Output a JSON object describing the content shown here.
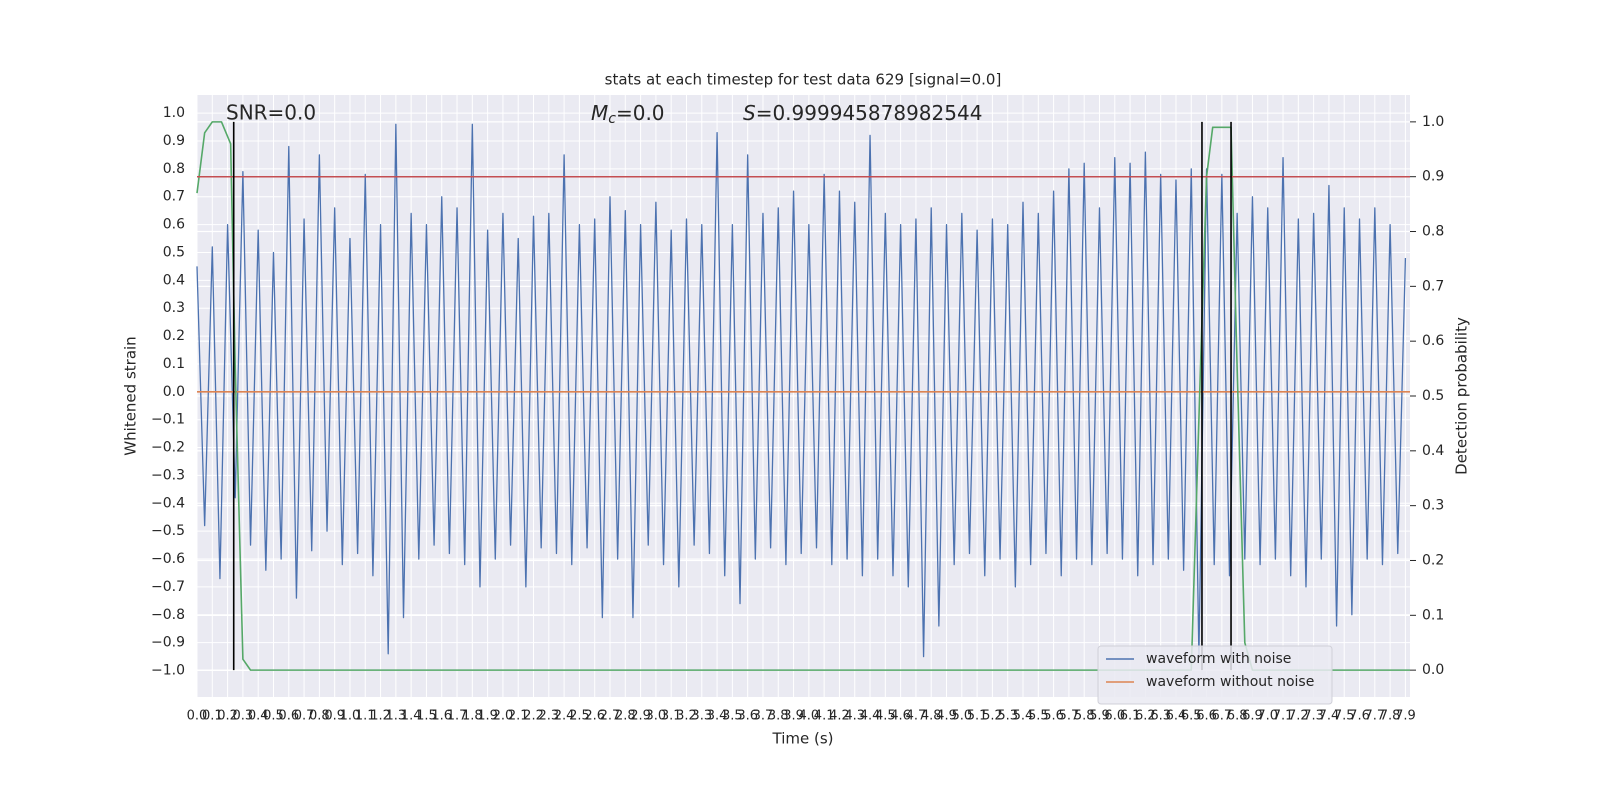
{
  "chart_data": {
    "type": "line",
    "title": "stats at each timestep for test data 629 [signal=0.0]",
    "xlabel": "Time (s)",
    "ylabel": "Whitened strain",
    "y2label": "Detection probability",
    "xlim": [
      0,
      7.93
    ],
    "ylim": [
      -1.095,
      1.065
    ],
    "y2lim": [
      -0.049,
      1.049
    ],
    "grid": true,
    "legend": "lower right",
    "xticks": [
      {
        "value": 0,
        "label": "0.0"
      },
      {
        "value": 0.1,
        "label": "0.1"
      },
      {
        "value": 0.2,
        "label": "0.2"
      },
      {
        "value": 0.3,
        "label": "0.3"
      },
      {
        "value": 0.4,
        "label": "0.4"
      },
      {
        "value": 0.5,
        "label": "0.5"
      },
      {
        "value": 0.6,
        "label": "0.6"
      },
      {
        "value": 0.7,
        "label": "0.7"
      },
      {
        "value": 0.8,
        "label": "0.8"
      },
      {
        "value": 0.9,
        "label": "0.9"
      },
      {
        "value": 1,
        "label": "1.0"
      },
      {
        "value": 1.1,
        "label": "1.1"
      },
      {
        "value": 1.2,
        "label": "1.2"
      },
      {
        "value": 1.3,
        "label": "1.3"
      },
      {
        "value": 1.4,
        "label": "1.4"
      },
      {
        "value": 1.5,
        "label": "1.5"
      },
      {
        "value": 1.6,
        "label": "1.6"
      },
      {
        "value": 1.7,
        "label": "1.7"
      },
      {
        "value": 1.8,
        "label": "1.8"
      },
      {
        "value": 1.9,
        "label": "1.9"
      },
      {
        "value": 2,
        "label": "2.0"
      },
      {
        "value": 2.1,
        "label": "2.1"
      },
      {
        "value": 2.2,
        "label": "2.2"
      },
      {
        "value": 2.3,
        "label": "2.3"
      },
      {
        "value": 2.4,
        "label": "2.4"
      },
      {
        "value": 2.5,
        "label": "2.5"
      },
      {
        "value": 2.6,
        "label": "2.6"
      },
      {
        "value": 2.7,
        "label": "2.7"
      },
      {
        "value": 2.8,
        "label": "2.8"
      },
      {
        "value": 2.9,
        "label": "2.9"
      },
      {
        "value": 3,
        "label": "3.0"
      },
      {
        "value": 3.1,
        "label": "3.1"
      },
      {
        "value": 3.2,
        "label": "3.2"
      },
      {
        "value": 3.3,
        "label": "3.3"
      },
      {
        "value": 3.4,
        "label": "3.4"
      },
      {
        "value": 3.5,
        "label": "3.5"
      },
      {
        "value": 3.6,
        "label": "3.6"
      },
      {
        "value": 3.7,
        "label": "3.7"
      },
      {
        "value": 3.8,
        "label": "3.8"
      },
      {
        "value": 3.9,
        "label": "3.9"
      },
      {
        "value": 4,
        "label": "4.0"
      },
      {
        "value": 4.1,
        "label": "4.1"
      },
      {
        "value": 4.2,
        "label": "4.2"
      },
      {
        "value": 4.3,
        "label": "4.3"
      },
      {
        "value": 4.4,
        "label": "4.4"
      },
      {
        "value": 4.5,
        "label": "4.5"
      },
      {
        "value": 4.6,
        "label": "4.6"
      },
      {
        "value": 4.7,
        "label": "4.7"
      },
      {
        "value": 4.8,
        "label": "4.8"
      },
      {
        "value": 4.9,
        "label": "4.9"
      },
      {
        "value": 5,
        "label": "5.0"
      },
      {
        "value": 5.1,
        "label": "5.1"
      },
      {
        "value": 5.2,
        "label": "5.2"
      },
      {
        "value": 5.3,
        "label": "5.3"
      },
      {
        "value": 5.4,
        "label": "5.4"
      },
      {
        "value": 5.5,
        "label": "5.5"
      },
      {
        "value": 5.6,
        "label": "5.6"
      },
      {
        "value": 5.7,
        "label": "5.7"
      },
      {
        "value": 5.8,
        "label": "5.8"
      },
      {
        "value": 5.9,
        "label": "5.9"
      },
      {
        "value": 6,
        "label": "6.0"
      },
      {
        "value": 6.1,
        "label": "6.1"
      },
      {
        "value": 6.2,
        "label": "6.2"
      },
      {
        "value": 6.3,
        "label": "6.3"
      },
      {
        "value": 6.4,
        "label": "6.4"
      },
      {
        "value": 6.5,
        "label": "6.5"
      },
      {
        "value": 6.6,
        "label": "6.6"
      },
      {
        "value": 6.7,
        "label": "6.7"
      },
      {
        "value": 6.8,
        "label": "6.8"
      },
      {
        "value": 6.9,
        "label": "6.9"
      },
      {
        "value": 7,
        "label": "7.0"
      },
      {
        "value": 7.1,
        "label": "7.1"
      },
      {
        "value": 7.2,
        "label": "7.2"
      },
      {
        "value": 7.3,
        "label": "7.3"
      },
      {
        "value": 7.4,
        "label": "7.4"
      },
      {
        "value": 7.5,
        "label": "7.5"
      },
      {
        "value": 7.6,
        "label": "7.6"
      },
      {
        "value": 7.7,
        "label": "7.7"
      },
      {
        "value": 7.8,
        "label": "7.8"
      },
      {
        "value": 7.9,
        "label": "7.9"
      }
    ],
    "yticks": [
      {
        "value": -1,
        "label": "−1.0"
      },
      {
        "value": -0.9,
        "label": "−0.9"
      },
      {
        "value": -0.8,
        "label": "−0.8"
      },
      {
        "value": -0.7,
        "label": "−0.7"
      },
      {
        "value": -0.6,
        "label": "−0.6"
      },
      {
        "value": -0.5,
        "label": "−0.5"
      },
      {
        "value": -0.4,
        "label": "−0.4"
      },
      {
        "value": -0.3,
        "label": "−0.3"
      },
      {
        "value": -0.2,
        "label": "−0.2"
      },
      {
        "value": -0.1,
        "label": "−0.1"
      },
      {
        "value": 0,
        "label": "0.0"
      },
      {
        "value": 0.1,
        "label": "0.1"
      },
      {
        "value": 0.2,
        "label": "0.2"
      },
      {
        "value": 0.3,
        "label": "0.3"
      },
      {
        "value": 0.4,
        "label": "0.4"
      },
      {
        "value": 0.5,
        "label": "0.5"
      },
      {
        "value": 0.6,
        "label": "0.6"
      },
      {
        "value": 0.7,
        "label": "0.7"
      },
      {
        "value": 0.8,
        "label": "0.8"
      },
      {
        "value": 0.9,
        "label": "0.9"
      },
      {
        "value": 1,
        "label": "1.0"
      }
    ],
    "y2ticks": [
      {
        "value": 0,
        "label": "0.0"
      },
      {
        "value": 0.1,
        "label": "0.1"
      },
      {
        "value": 0.2,
        "label": "0.2"
      },
      {
        "value": 0.3,
        "label": "0.3"
      },
      {
        "value": 0.4,
        "label": "0.4"
      },
      {
        "value": 0.5,
        "label": "0.5"
      },
      {
        "value": 0.6,
        "label": "0.6"
      },
      {
        "value": 0.7,
        "label": "0.7"
      },
      {
        "value": 0.8,
        "label": "0.8"
      },
      {
        "value": 0.9,
        "label": "0.9"
      },
      {
        "value": 1,
        "label": "1.0"
      }
    ],
    "series": [
      {
        "name": "waveform with noise",
        "color": "#4c72b0",
        "x": [
          0,
          0.05,
          0.1,
          0.15,
          0.2,
          0.25,
          0.3,
          0.35,
          0.4,
          0.45,
          0.5,
          0.55,
          0.6,
          0.65,
          0.7,
          0.75,
          0.8,
          0.85,
          0.9,
          0.95,
          1,
          1.05,
          1.1,
          1.15,
          1.2,
          1.25,
          1.3,
          1.35,
          1.4,
          1.45,
          1.5,
          1.55,
          1.6,
          1.65,
          1.7,
          1.75,
          1.8,
          1.85,
          1.9,
          1.95,
          2,
          2.05,
          2.1,
          2.15,
          2.2,
          2.25,
          2.3,
          2.35,
          2.4,
          2.45,
          2.5,
          2.55,
          2.6,
          2.65,
          2.7,
          2.75,
          2.8,
          2.85,
          2.9,
          2.95,
          3,
          3.05,
          3.1,
          3.15,
          3.2,
          3.25,
          3.3,
          3.35,
          3.4,
          3.45,
          3.5,
          3.55,
          3.6,
          3.65,
          3.7,
          3.75,
          3.8,
          3.85,
          3.9,
          3.95,
          4,
          4.05,
          4.1,
          4.15,
          4.2,
          4.25,
          4.3,
          4.35,
          4.4,
          4.45,
          4.5,
          4.55,
          4.6,
          4.65,
          4.7,
          4.75,
          4.8,
          4.85,
          4.9,
          4.95,
          5,
          5.05,
          5.1,
          5.15,
          5.2,
          5.25,
          5.3,
          5.35,
          5.4,
          5.45,
          5.5,
          5.55,
          5.6,
          5.65,
          5.7,
          5.75,
          5.8,
          5.85,
          5.9,
          5.95,
          6,
          6.05,
          6.1,
          6.15,
          6.2,
          6.25,
          6.3,
          6.35,
          6.4,
          6.45,
          6.5,
          6.55,
          6.6,
          6.65,
          6.7,
          6.75,
          6.8,
          6.85,
          6.9,
          6.95,
          7,
          7.05,
          7.1,
          7.15,
          7.2,
          7.25,
          7.3,
          7.35,
          7.4,
          7.45,
          7.5,
          7.55,
          7.6,
          7.65,
          7.7,
          7.75,
          7.8,
          7.85,
          7.9
        ],
        "values": [
          0.45,
          -0.48,
          0.52,
          -0.67,
          0.6,
          -0.38,
          0.79,
          -0.55,
          0.58,
          -0.64,
          0.5,
          -0.6,
          0.88,
          -0.74,
          0.62,
          -0.57,
          0.85,
          -0.5,
          0.66,
          -0.62,
          0.55,
          -0.58,
          0.78,
          -0.66,
          0.6,
          -0.94,
          0.96,
          -0.81,
          0.64,
          -0.6,
          0.6,
          -0.55,
          0.7,
          -0.58,
          0.66,
          -0.62,
          0.96,
          -0.7,
          0.58,
          -0.6,
          0.64,
          -0.55,
          0.55,
          -0.7,
          0.63,
          -0.56,
          0.64,
          -0.58,
          0.85,
          -0.62,
          0.6,
          -0.56,
          0.62,
          -0.81,
          0.7,
          -0.6,
          0.65,
          -0.81,
          0.6,
          -0.55,
          0.68,
          -0.62,
          0.58,
          -0.7,
          0.62,
          -0.55,
          0.6,
          -0.58,
          0.93,
          -0.66,
          0.6,
          -0.76,
          0.85,
          -0.6,
          0.64,
          -0.56,
          0.66,
          -0.62,
          0.72,
          -0.58,
          0.6,
          -0.56,
          0.78,
          -0.62,
          0.72,
          -0.6,
          0.68,
          -0.66,
          0.92,
          -0.6,
          0.64,
          -0.66,
          0.6,
          -0.7,
          0.62,
          -0.95,
          0.66,
          -0.84,
          0.6,
          -0.62,
          0.64,
          -0.58,
          0.58,
          -0.66,
          0.62,
          -0.6,
          0.6,
          -0.7,
          0.68,
          -0.62,
          0.64,
          -0.58,
          0.72,
          -0.66,
          0.8,
          -0.6,
          0.82,
          -0.62,
          0.66,
          -0.58,
          0.84,
          -0.6,
          0.82,
          -0.66,
          0.86,
          -0.62,
          0.78,
          -0.6,
          0.76,
          -0.64,
          0.8,
          -0.95,
          0.8,
          -0.62,
          0.78,
          -0.66,
          0.64,
          -0.6,
          0.7,
          -0.62,
          0.66,
          -0.6,
          0.84,
          -0.66,
          0.62,
          -0.7,
          0.64,
          -0.6,
          0.74,
          -0.84,
          0.66,
          -0.8,
          0.62,
          -0.6,
          0.66,
          -0.62,
          0.6,
          -0.58,
          0.48
        ]
      },
      {
        "name": "waveform without noise",
        "color": "#dd8452",
        "x": [
          0,
          7.93
        ],
        "values": [
          0,
          0
        ]
      },
      {
        "color": "#55a868",
        "axis": "y2",
        "x": [
          0,
          0.05,
          0.1,
          0.16,
          0.22,
          0.25,
          0.3,
          0.35,
          6.5,
          6.56,
          6.6,
          6.64,
          6.76,
          6.8,
          6.85,
          6.9,
          7.93
        ],
        "values": [
          0.87,
          0.98,
          1.0,
          1.0,
          0.96,
          0.55,
          0.02,
          0,
          0,
          0.55,
          0.9,
          0.99,
          0.99,
          0.55,
          0.05,
          0,
          0
        ]
      }
    ],
    "hlines": [
      {
        "value": 0.9,
        "axis": "y2",
        "color": "#c44e52"
      }
    ],
    "vlines": [
      0.24,
      6.57,
      6.76
    ],
    "annotations": [
      {
        "text": "SNR=0.0"
      },
      {
        "symbol": "M",
        "subscript": "c",
        "text": "=0.0"
      },
      {
        "symbol": "S",
        "text": "=0.999945878982544"
      }
    ]
  }
}
